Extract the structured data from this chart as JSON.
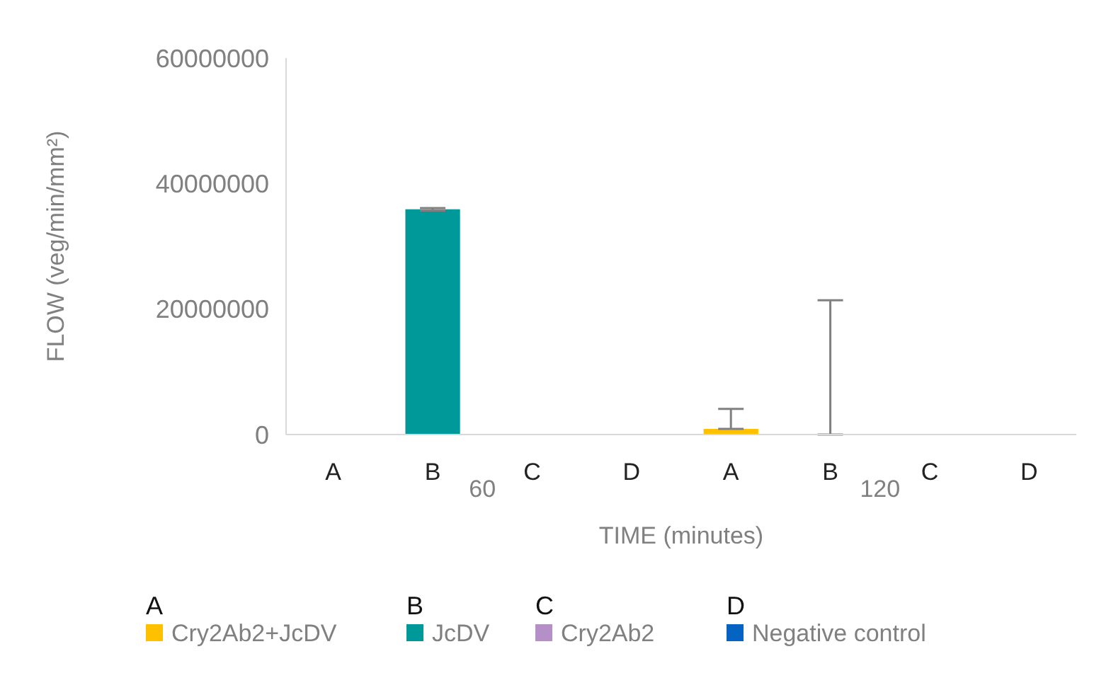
{
  "chart_data": {
    "type": "bar",
    "xlabel": "TIME (minutes)",
    "ylabel": "FLOW (veg/min/mm²)",
    "categories": [
      "A",
      "B",
      "C",
      "D",
      "A",
      "B",
      "C",
      "D"
    ],
    "series": [
      {
        "name": "Cry2Ab2+JcDV",
        "color": "#ffc000",
        "values": [
          0,
          null,
          null,
          null,
          900000,
          null,
          null,
          null
        ],
        "errors": [
          null,
          null,
          null,
          null,
          [
            900000,
            4100000
          ],
          null,
          null,
          null
        ]
      },
      {
        "name": "JcDV",
        "color": "#009999",
        "values": [
          null,
          35900000,
          null,
          null,
          null,
          0,
          null,
          null
        ],
        "errors": [
          null,
          200000,
          null,
          null,
          null,
          [
            0,
            21400000
          ],
          null,
          null
        ]
      },
      {
        "name": "Cry2Ab2",
        "color": "#b48fc8",
        "values": [
          null,
          null,
          0,
          null,
          null,
          null,
          0,
          null
        ]
      },
      {
        "name": "Negative control",
        "color": "#0563c1",
        "values": [
          null,
          null,
          null,
          0,
          null,
          null,
          null,
          0
        ]
      }
    ],
    "ylim": [
      0,
      60000000
    ],
    "yticks": [
      0,
      20000000,
      40000000,
      60000000
    ],
    "annotations": [
      "60",
      "120",
      "A",
      "B",
      "C",
      "D"
    ],
    "legend": "bottom"
  }
}
